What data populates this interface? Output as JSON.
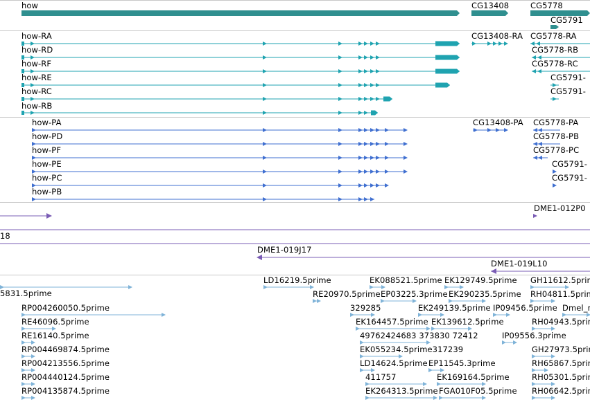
{
  "colors": {
    "gene": "#2f8f8f",
    "transcript": "#1fa3b0",
    "protein": "#3f6fd0",
    "clone": "#7a5cb5",
    "est": "#7fb3d8",
    "separator": "#c8c8c8"
  },
  "gene_track": {
    "items": [
      {
        "label": "how"
      },
      {
        "label": "CG13408"
      },
      {
        "label": "CG5778"
      },
      {
        "label": "CG5791"
      }
    ]
  },
  "transcript_track": {
    "items": [
      {
        "label": "how-RA"
      },
      {
        "label": "how-RD"
      },
      {
        "label": "how-RF"
      },
      {
        "label": "how-RE"
      },
      {
        "label": "how-RC"
      },
      {
        "label": "how-RB"
      },
      {
        "label": "CG13408-RA"
      },
      {
        "label": "CG5778-RA"
      },
      {
        "label": "CG5778-RB"
      },
      {
        "label": "CG5778-RC"
      },
      {
        "label": "CG5791-"
      },
      {
        "label": "CG5791-"
      }
    ]
  },
  "protein_track": {
    "items": [
      {
        "label": "how-PA"
      },
      {
        "label": "how-PD"
      },
      {
        "label": "how-PF"
      },
      {
        "label": "how-PE"
      },
      {
        "label": "how-PC"
      },
      {
        "label": "how-PB"
      },
      {
        "label": "CG13408-PA"
      },
      {
        "label": "CG5778-PA"
      },
      {
        "label": "CG5778-PB"
      },
      {
        "label": "CG5778-PC"
      },
      {
        "label": "CG5791-"
      },
      {
        "label": "CG5791-"
      }
    ]
  },
  "clone_track": {
    "items": [
      {
        "label": "DME1-012P0"
      },
      {
        "label": "18"
      },
      {
        "label": "DME1-019J17"
      },
      {
        "label": "DME1-019L10"
      }
    ]
  },
  "est_track": {
    "items": [
      {
        "label": "5831.5prime"
      },
      {
        "label": "LD16219.5prime"
      },
      {
        "label": "EK088521.5prime"
      },
      {
        "label": "EK129749.5prime"
      },
      {
        "label": "GH11612.5prime"
      },
      {
        "label": "RE20970.5prime"
      },
      {
        "label": "EP03225.3prime"
      },
      {
        "label": "EK290235.5prime"
      },
      {
        "label": "RH04811.5prime"
      },
      {
        "label": "RP004260050.5prime"
      },
      {
        "label": "329285"
      },
      {
        "label": "EK249139.5prime"
      },
      {
        "label": "IP09456.5prime"
      },
      {
        "label": "Dmel_r"
      },
      {
        "label": "RE46096.5prime"
      },
      {
        "label": "EK164457.5prime"
      },
      {
        "label": "EK139612.5prime"
      },
      {
        "label": "RH04943.5prime"
      },
      {
        "label": "RE16140.5prime"
      },
      {
        "label": "49762424683 373830 72412"
      },
      {
        "label": "IP09556.3prime"
      },
      {
        "label": "RP004469874.5prime"
      },
      {
        "label": "EK055234.5prime317239"
      },
      {
        "label": "GH27973.5prime"
      },
      {
        "label": "RP004213556.5prime"
      },
      {
        "label": "LD14624.5prime"
      },
      {
        "label": "EP11545.3prime"
      },
      {
        "label": "RH65867.5prime"
      },
      {
        "label": "RP004440124.5prime"
      },
      {
        "label": "411757"
      },
      {
        "label": "EK169164.5prime"
      },
      {
        "label": "RH05301.5prime"
      },
      {
        "label": "RP004135874.5prime"
      },
      {
        "label": "EK264313.5prime"
      },
      {
        "label": "FGA010F05.5prime"
      },
      {
        "label": "RH06642.5prime"
      }
    ]
  }
}
